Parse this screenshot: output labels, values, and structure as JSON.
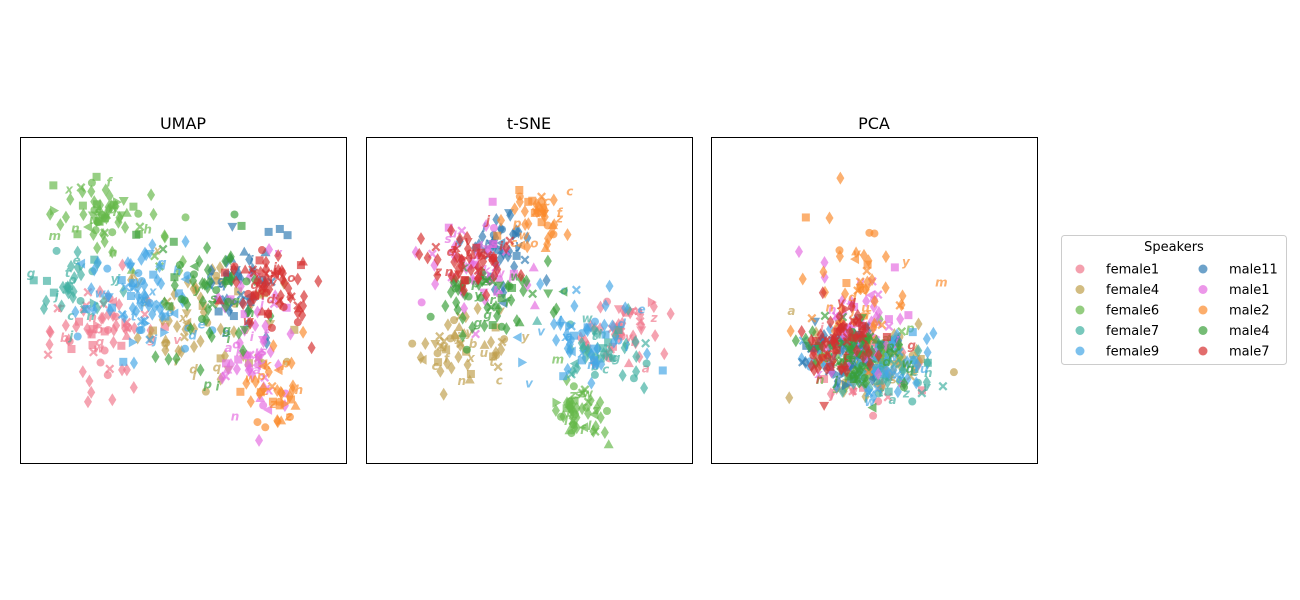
{
  "chart_data": {
    "type": "scatter",
    "legend": {
      "title": "Speakers",
      "placement": "right",
      "columns": 2
    },
    "speakers": [
      {
        "name": "female1",
        "color": "#f0788c"
      },
      {
        "name": "female4",
        "color": "#bf9f4c"
      },
      {
        "name": "female6",
        "color": "#66b84a"
      },
      {
        "name": "female7",
        "color": "#3fb0a0"
      },
      {
        "name": "female9",
        "color": "#45a6e6"
      },
      {
        "name": "male11",
        "color": "#2f7ab3"
      },
      {
        "name": "male1",
        "color": "#e46be0"
      },
      {
        "name": "male2",
        "color": "#fb8a2c"
      },
      {
        "name": "male4",
        "color": "#3a9f3a"
      },
      {
        "name": "male7",
        "color": "#d62f2f"
      }
    ],
    "panels": [
      {
        "title": "UMAP",
        "xlim": [
          0,
          100
        ],
        "ylim": [
          0,
          100
        ],
        "axis_ticks": false,
        "clusters": [
          {
            "speaker": "female1",
            "cx": 27,
            "cy": 40,
            "sx": 14,
            "sy": 12,
            "n": 70,
            "seed": 11
          },
          {
            "speaker": "female4",
            "cx": 55,
            "cy": 45,
            "sx": 18,
            "sy": 16,
            "n": 70,
            "seed": 12
          },
          {
            "speaker": "female6",
            "cx": 28,
            "cy": 75,
            "sx": 14,
            "sy": 10,
            "n": 75,
            "seed": 13
          },
          {
            "speaker": "female7",
            "cx": 18,
            "cy": 55,
            "sx": 10,
            "sy": 10,
            "n": 40,
            "seed": 14
          },
          {
            "speaker": "female9",
            "cx": 38,
            "cy": 50,
            "sx": 16,
            "sy": 13,
            "n": 85,
            "seed": 15
          },
          {
            "speaker": "male11",
            "cx": 68,
            "cy": 55,
            "sx": 10,
            "sy": 14,
            "n": 45,
            "seed": 16
          },
          {
            "speaker": "male1",
            "cx": 72,
            "cy": 35,
            "sx": 9,
            "sy": 20,
            "n": 60,
            "seed": 17
          },
          {
            "speaker": "male2",
            "cx": 78,
            "cy": 22,
            "sx": 7,
            "sy": 12,
            "n": 40,
            "seed": 18
          },
          {
            "speaker": "male4",
            "cx": 60,
            "cy": 50,
            "sx": 16,
            "sy": 18,
            "n": 60,
            "seed": 19
          },
          {
            "speaker": "male7",
            "cx": 76,
            "cy": 55,
            "sx": 11,
            "sy": 12,
            "n": 70,
            "seed": 20
          }
        ]
      },
      {
        "title": "t-SNE",
        "xlim": [
          0,
          100
        ],
        "ylim": [
          0,
          100
        ],
        "axis_ticks": false,
        "clusters": [
          {
            "speaker": "female1",
            "cx": 78,
            "cy": 40,
            "sx": 10,
            "sy": 7,
            "n": 50,
            "seed": 21
          },
          {
            "speaker": "female4",
            "cx": 28,
            "cy": 35,
            "sx": 14,
            "sy": 9,
            "n": 55,
            "seed": 22
          },
          {
            "speaker": "female6",
            "cx": 64,
            "cy": 17,
            "sx": 8,
            "sy": 8,
            "n": 55,
            "seed": 23
          },
          {
            "speaker": "female7",
            "cx": 72,
            "cy": 35,
            "sx": 12,
            "sy": 9,
            "n": 45,
            "seed": 24
          },
          {
            "speaker": "female9",
            "cx": 66,
            "cy": 38,
            "sx": 14,
            "sy": 10,
            "n": 55,
            "seed": 25
          },
          {
            "speaker": "male11",
            "cx": 42,
            "cy": 65,
            "sx": 10,
            "sy": 9,
            "n": 45,
            "seed": 26
          },
          {
            "speaker": "male1",
            "cx": 34,
            "cy": 60,
            "sx": 13,
            "sy": 10,
            "n": 55,
            "seed": 27
          },
          {
            "speaker": "male2",
            "cx": 53,
            "cy": 74,
            "sx": 7,
            "sy": 9,
            "n": 45,
            "seed": 28
          },
          {
            "speaker": "male4",
            "cx": 40,
            "cy": 50,
            "sx": 16,
            "sy": 11,
            "n": 60,
            "seed": 29
          },
          {
            "speaker": "male7",
            "cx": 32,
            "cy": 63,
            "sx": 12,
            "sy": 10,
            "n": 55,
            "seed": 30
          }
        ]
      },
      {
        "title": "PCA",
        "xlim": [
          0,
          100
        ],
        "ylim": [
          0,
          100
        ],
        "axis_ticks": false,
        "clusters": [
          {
            "speaker": "female1",
            "cx": 48,
            "cy": 30,
            "sx": 14,
            "sy": 9,
            "n": 50,
            "seed": 31
          },
          {
            "speaker": "female4",
            "cx": 50,
            "cy": 33,
            "sx": 16,
            "sy": 10,
            "n": 55,
            "seed": 32
          },
          {
            "speaker": "female6",
            "cx": 47,
            "cy": 33,
            "sx": 12,
            "sy": 8,
            "n": 50,
            "seed": 33
          },
          {
            "speaker": "female7",
            "cx": 55,
            "cy": 28,
            "sx": 14,
            "sy": 8,
            "n": 50,
            "seed": 34
          },
          {
            "speaker": "female9",
            "cx": 50,
            "cy": 32,
            "sx": 16,
            "sy": 9,
            "n": 70,
            "seed": 35
          },
          {
            "speaker": "male11",
            "cx": 40,
            "cy": 35,
            "sx": 12,
            "sy": 9,
            "n": 50,
            "seed": 36
          },
          {
            "speaker": "male1",
            "cx": 45,
            "cy": 42,
            "sx": 12,
            "sy": 14,
            "n": 55,
            "seed": 37
          },
          {
            "speaker": "male2",
            "cx": 45,
            "cy": 55,
            "sx": 13,
            "sy": 20,
            "n": 55,
            "seed": 38
          },
          {
            "speaker": "male4",
            "cx": 44,
            "cy": 33,
            "sx": 11,
            "sy": 8,
            "n": 70,
            "seed": 39
          },
          {
            "speaker": "male7",
            "cx": 40,
            "cy": 37,
            "sx": 10,
            "sy": 10,
            "n": 70,
            "seed": 40
          }
        ]
      }
    ]
  }
}
